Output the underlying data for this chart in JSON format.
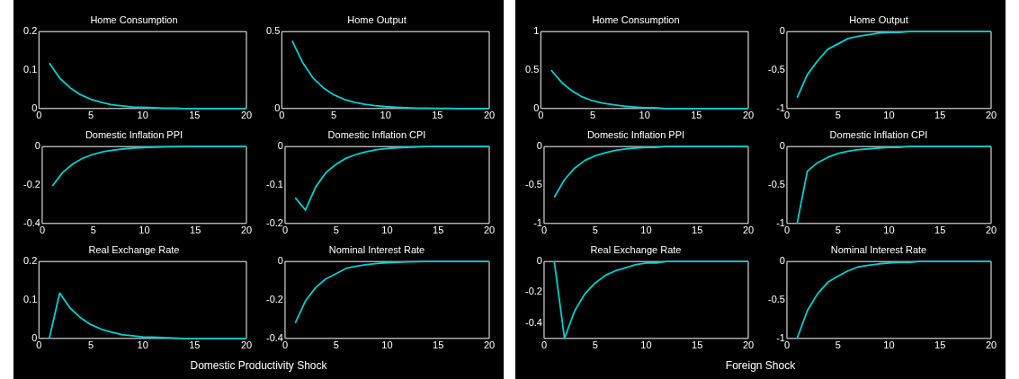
{
  "chart_data": [
    {
      "type": "line",
      "title": "Home Consumption",
      "x": [
        1,
        2,
        3,
        4,
        5,
        6,
        7,
        8,
        9,
        10,
        11,
        12,
        13,
        14,
        15,
        16,
        17,
        18,
        19,
        20
      ],
      "values": [
        0.118,
        0.079,
        0.054,
        0.036,
        0.024,
        0.016,
        0.01,
        0.007,
        0.004,
        0.003,
        0.002,
        0.001,
        0.001,
        0,
        0,
        0,
        0,
        0,
        0,
        0
      ],
      "color": "#00d0d0",
      "xlim": [
        0,
        20
      ],
      "xticks": [
        0,
        5,
        10,
        15,
        20
      ],
      "ylim": [
        0,
        0.2
      ],
      "yticks": [
        0,
        0.1,
        0.2
      ]
    },
    {
      "type": "line",
      "title": "Home Output",
      "x": [
        1,
        2,
        3,
        4,
        5,
        6,
        7,
        8,
        9,
        10,
        11,
        12,
        13,
        14,
        15,
        16,
        17,
        18,
        19,
        20
      ],
      "values": [
        0.44,
        0.3,
        0.2,
        0.135,
        0.09,
        0.06,
        0.04,
        0.027,
        0.018,
        0.012,
        0.008,
        0.005,
        0.003,
        0.002,
        0.001,
        0.001,
        0,
        0,
        0,
        0
      ],
      "color": "#00d0d0",
      "xlim": [
        0,
        20
      ],
      "xticks": [
        0,
        5,
        10,
        15,
        20
      ],
      "ylim": [
        0,
        0.5
      ],
      "yticks": [
        0,
        0.5
      ]
    },
    {
      "type": "line",
      "title": "Domestic Inflation PPI",
      "x": [
        1,
        2,
        3,
        4,
        5,
        6,
        7,
        8,
        9,
        10,
        11,
        12,
        13,
        14,
        15,
        16,
        17,
        18,
        19,
        20
      ],
      "values": [
        -0.205,
        -0.135,
        -0.09,
        -0.06,
        -0.04,
        -0.027,
        -0.018,
        -0.012,
        -0.008,
        -0.005,
        -0.003,
        -0.002,
        -0.001,
        0,
        0,
        0,
        0,
        0,
        0,
        0
      ],
      "color": "#00d0d0",
      "xlim": [
        0,
        20
      ],
      "xticks": [
        0,
        5,
        10,
        15,
        20
      ],
      "ylim": [
        -0.4,
        0
      ],
      "yticks": [
        -0.4,
        -0.2,
        0
      ]
    },
    {
      "type": "line",
      "title": "Domestic Inflation CPI",
      "x": [
        1,
        2,
        3,
        4,
        5,
        6,
        7,
        8,
        9,
        10,
        11,
        12,
        13,
        14,
        15,
        16,
        17,
        18,
        19,
        20
      ],
      "values": [
        -0.133,
        -0.165,
        -0.105,
        -0.068,
        -0.046,
        -0.03,
        -0.02,
        -0.013,
        -0.008,
        -0.005,
        -0.003,
        -0.002,
        -0.001,
        0,
        0,
        0,
        0,
        0,
        0,
        0
      ],
      "color": "#00d0d0",
      "xlim": [
        0,
        20
      ],
      "xticks": [
        0,
        5,
        10,
        15,
        20
      ],
      "ylim": [
        -0.2,
        0
      ],
      "yticks": [
        -0.2,
        -0.1,
        0
      ]
    },
    {
      "type": "line",
      "title": "Real Exchange Rate",
      "x": [
        1,
        2,
        3,
        4,
        5,
        6,
        7,
        8,
        9,
        10,
        11,
        12,
        13,
        14,
        15,
        16,
        17,
        18,
        19,
        20
      ],
      "values": [
        0,
        0.118,
        0.079,
        0.054,
        0.036,
        0.024,
        0.016,
        0.01,
        0.007,
        0.004,
        0.003,
        0.002,
        0.001,
        0,
        0,
        0,
        0,
        0,
        0,
        0
      ],
      "color": "#00d0d0",
      "xlim": [
        0,
        20
      ],
      "xticks": [
        0,
        5,
        10,
        15,
        20
      ],
      "ylim": [
        0,
        0.2
      ],
      "yticks": [
        0,
        0.1,
        0.2
      ]
    },
    {
      "type": "line",
      "title": "Nominal Interest Rate",
      "x": [
        1,
        2,
        3,
        4,
        5,
        6,
        7,
        8,
        9,
        10,
        11,
        12,
        13,
        14,
        15,
        16,
        17,
        18,
        19,
        20
      ],
      "values": [
        -0.32,
        -0.205,
        -0.135,
        -0.09,
        -0.063,
        -0.035,
        -0.024,
        -0.016,
        -0.01,
        -0.006,
        -0.004,
        -0.002,
        -0.001,
        0,
        0,
        0,
        0,
        0,
        0,
        0
      ],
      "color": "#00d0d0",
      "xlim": [
        0,
        20
      ],
      "xticks": [
        0,
        5,
        10,
        15,
        20
      ],
      "ylim": [
        -0.4,
        0
      ],
      "yticks": [
        -0.4,
        -0.2,
        0
      ],
      "annotations": [
        "Domestic Productivity Shock"
      ]
    },
    {
      "type": "line",
      "title": "Home Consumption",
      "x": [
        1,
        2,
        3,
        4,
        5,
        6,
        7,
        8,
        9,
        10,
        11,
        12,
        13,
        14,
        15,
        16,
        17,
        18,
        19,
        20
      ],
      "values": [
        0.5,
        0.34,
        0.23,
        0.15,
        0.1,
        0.07,
        0.05,
        0.03,
        0.02,
        0.01,
        0.01,
        0,
        0,
        0,
        0,
        0,
        0,
        0,
        0,
        0
      ],
      "color": "#00d0d0",
      "xlim": [
        0,
        20
      ],
      "xticks": [
        0,
        5,
        10,
        15,
        20
      ],
      "ylim": [
        0,
        1
      ],
      "yticks": [
        0,
        0.5,
        1
      ]
    },
    {
      "type": "line",
      "title": "Home Output",
      "x": [
        1,
        2,
        3,
        4,
        5,
        6,
        7,
        8,
        9,
        10,
        11,
        12,
        13,
        14,
        15,
        16,
        17,
        18,
        19,
        20
      ],
      "values": [
        -0.86,
        -0.56,
        -0.38,
        -0.23,
        -0.16,
        -0.09,
        -0.06,
        -0.04,
        -0.02,
        -0.01,
        -0.01,
        0,
        0,
        0,
        0,
        0,
        0,
        0,
        0,
        0
      ],
      "color": "#00d0d0",
      "xlim": [
        0,
        20
      ],
      "xticks": [
        0,
        5,
        10,
        15,
        20
      ],
      "ylim": [
        -1,
        0
      ],
      "yticks": [
        -1,
        -0.5,
        0
      ]
    },
    {
      "type": "line",
      "title": "Domestic Inflation PPI",
      "x": [
        1,
        2,
        3,
        4,
        5,
        6,
        7,
        8,
        9,
        10,
        11,
        12,
        13,
        14,
        15,
        16,
        17,
        18,
        19,
        20
      ],
      "values": [
        -0.66,
        -0.43,
        -0.28,
        -0.18,
        -0.12,
        -0.08,
        -0.05,
        -0.03,
        -0.02,
        -0.01,
        -0.01,
        0,
        0,
        0,
        0,
        0,
        0,
        0,
        0,
        0
      ],
      "color": "#00d0d0",
      "xlim": [
        0,
        20
      ],
      "xticks": [
        0,
        5,
        10,
        15,
        20
      ],
      "ylim": [
        -1,
        0
      ],
      "yticks": [
        -1,
        -0.5,
        0
      ]
    },
    {
      "type": "line",
      "title": "Domestic Inflation CPI",
      "x": [
        1,
        2,
        3,
        4,
        5,
        6,
        7,
        8,
        9,
        10,
        11,
        12,
        13,
        14,
        15,
        16,
        17,
        18,
        19,
        20
      ],
      "values": [
        -1,
        -0.32,
        -0.21,
        -0.14,
        -0.09,
        -0.06,
        -0.04,
        -0.03,
        -0.02,
        -0.01,
        -0.01,
        0,
        0,
        0,
        0,
        0,
        0,
        0,
        0,
        0
      ],
      "color": "#00d0d0",
      "xlim": [
        0,
        20
      ],
      "xticks": [
        0,
        5,
        10,
        15,
        20
      ],
      "ylim": [
        -1,
        0
      ],
      "yticks": [
        -1,
        -0.5,
        0
      ]
    },
    {
      "type": "line",
      "title": "Real Exchange Rate",
      "x": [
        1,
        2,
        3,
        4,
        5,
        6,
        7,
        8,
        9,
        10,
        11,
        12,
        13,
        14,
        15,
        16,
        17,
        18,
        19,
        20
      ],
      "values": [
        0,
        -0.5,
        -0.32,
        -0.21,
        -0.14,
        -0.09,
        -0.06,
        -0.04,
        -0.02,
        -0.01,
        -0.01,
        0,
        0,
        0,
        0,
        0,
        0,
        0,
        0,
        0
      ],
      "color": "#00d0d0",
      "xlim": [
        0,
        20
      ],
      "xticks": [
        0,
        5,
        10,
        15,
        20
      ],
      "ylim": [
        -0.5,
        0
      ],
      "yticks": [
        -0.4,
        -0.2,
        0
      ]
    },
    {
      "type": "line",
      "title": "Nominal Interest Rate",
      "x": [
        1,
        2,
        3,
        4,
        5,
        6,
        7,
        8,
        9,
        10,
        11,
        12,
        13,
        14,
        15,
        16,
        17,
        18,
        19,
        20
      ],
      "values": [
        -1,
        -0.64,
        -0.42,
        -0.27,
        -0.19,
        -0.12,
        -0.07,
        -0.05,
        -0.03,
        -0.02,
        -0.01,
        -0.01,
        0,
        0,
        0,
        0,
        0,
        0,
        0,
        0
      ],
      "color": "#00d0d0",
      "xlim": [
        0,
        20
      ],
      "xticks": [
        0,
        5,
        10,
        15,
        20
      ],
      "ylim": [
        -1,
        0
      ],
      "yticks": [
        -1,
        -0.5,
        0
      ],
      "annotations": [
        "Foreign Shock"
      ]
    }
  ]
}
